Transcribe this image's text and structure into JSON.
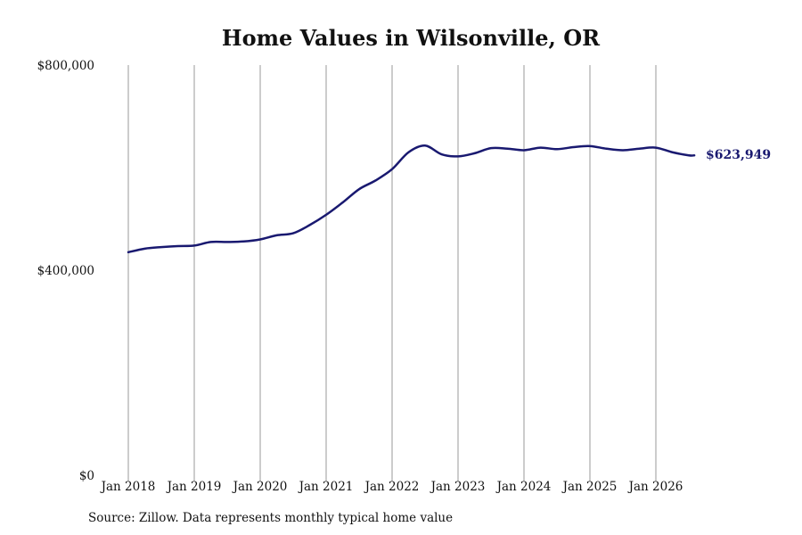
{
  "chart_data": {
    "type": "line",
    "title": "Home Values in Wilsonville, OR",
    "xlabel": "",
    "ylabel": "",
    "y_ticks": [
      {
        "value": 0,
        "label": "$0"
      },
      {
        "value": 400000,
        "label": "$400,000"
      },
      {
        "value": 800000,
        "label": "$800,000"
      }
    ],
    "ylim": [
      0,
      800000
    ],
    "x_ticks": [
      {
        "value": "2018-01",
        "label": "Jan 2018"
      },
      {
        "value": "2019-01",
        "label": "Jan 2019"
      },
      {
        "value": "2020-01",
        "label": "Jan 2020"
      },
      {
        "value": "2021-01",
        "label": "Jan 2021"
      },
      {
        "value": "2022-01",
        "label": "Jan 2022"
      },
      {
        "value": "2023-01",
        "label": "Jan 2023"
      },
      {
        "value": "2024-01",
        "label": "Jan 2024"
      },
      {
        "value": "2025-01",
        "label": "Jan 2025"
      },
      {
        "value": "2026-01",
        "label": "Jan 2026"
      }
    ],
    "grid": "vertical",
    "line_color": "#191970",
    "series": [
      {
        "points": [
          [
            "2018-01",
            435000
          ],
          [
            "2018-04",
            442000
          ],
          [
            "2018-07",
            445000
          ],
          [
            "2018-10",
            447000
          ],
          [
            "2019-01",
            448000
          ],
          [
            "2019-04",
            455000
          ],
          [
            "2019-07",
            455000
          ],
          [
            "2019-10",
            456000
          ],
          [
            "2020-01",
            460000
          ],
          [
            "2020-04",
            468000
          ],
          [
            "2020-07",
            472000
          ],
          [
            "2020-10",
            488000
          ],
          [
            "2021-01",
            508000
          ],
          [
            "2021-04",
            532000
          ],
          [
            "2021-07",
            558000
          ],
          [
            "2021-10",
            575000
          ],
          [
            "2022-01",
            597000
          ],
          [
            "2022-04",
            630000
          ],
          [
            "2022-07",
            643000
          ],
          [
            "2022-10",
            626000
          ],
          [
            "2023-01",
            622000
          ],
          [
            "2023-04",
            628000
          ],
          [
            "2023-07",
            638000
          ],
          [
            "2023-10",
            637000
          ],
          [
            "2024-01",
            634000
          ],
          [
            "2024-04",
            639000
          ],
          [
            "2024-07",
            636000
          ],
          [
            "2024-10",
            640000
          ],
          [
            "2025-01",
            642000
          ],
          [
            "2025-04",
            637000
          ],
          [
            "2025-07",
            634000
          ],
          [
            "2025-10",
            637000
          ],
          [
            "2026-01",
            639000
          ],
          [
            "2026-04",
            630000
          ],
          [
            "2026-07",
            624000
          ],
          [
            "2026-08",
            623949
          ]
        ]
      }
    ],
    "end_label": "$623,949"
  },
  "source_note": "Source: Zillow. Data represents monthly typical home value"
}
